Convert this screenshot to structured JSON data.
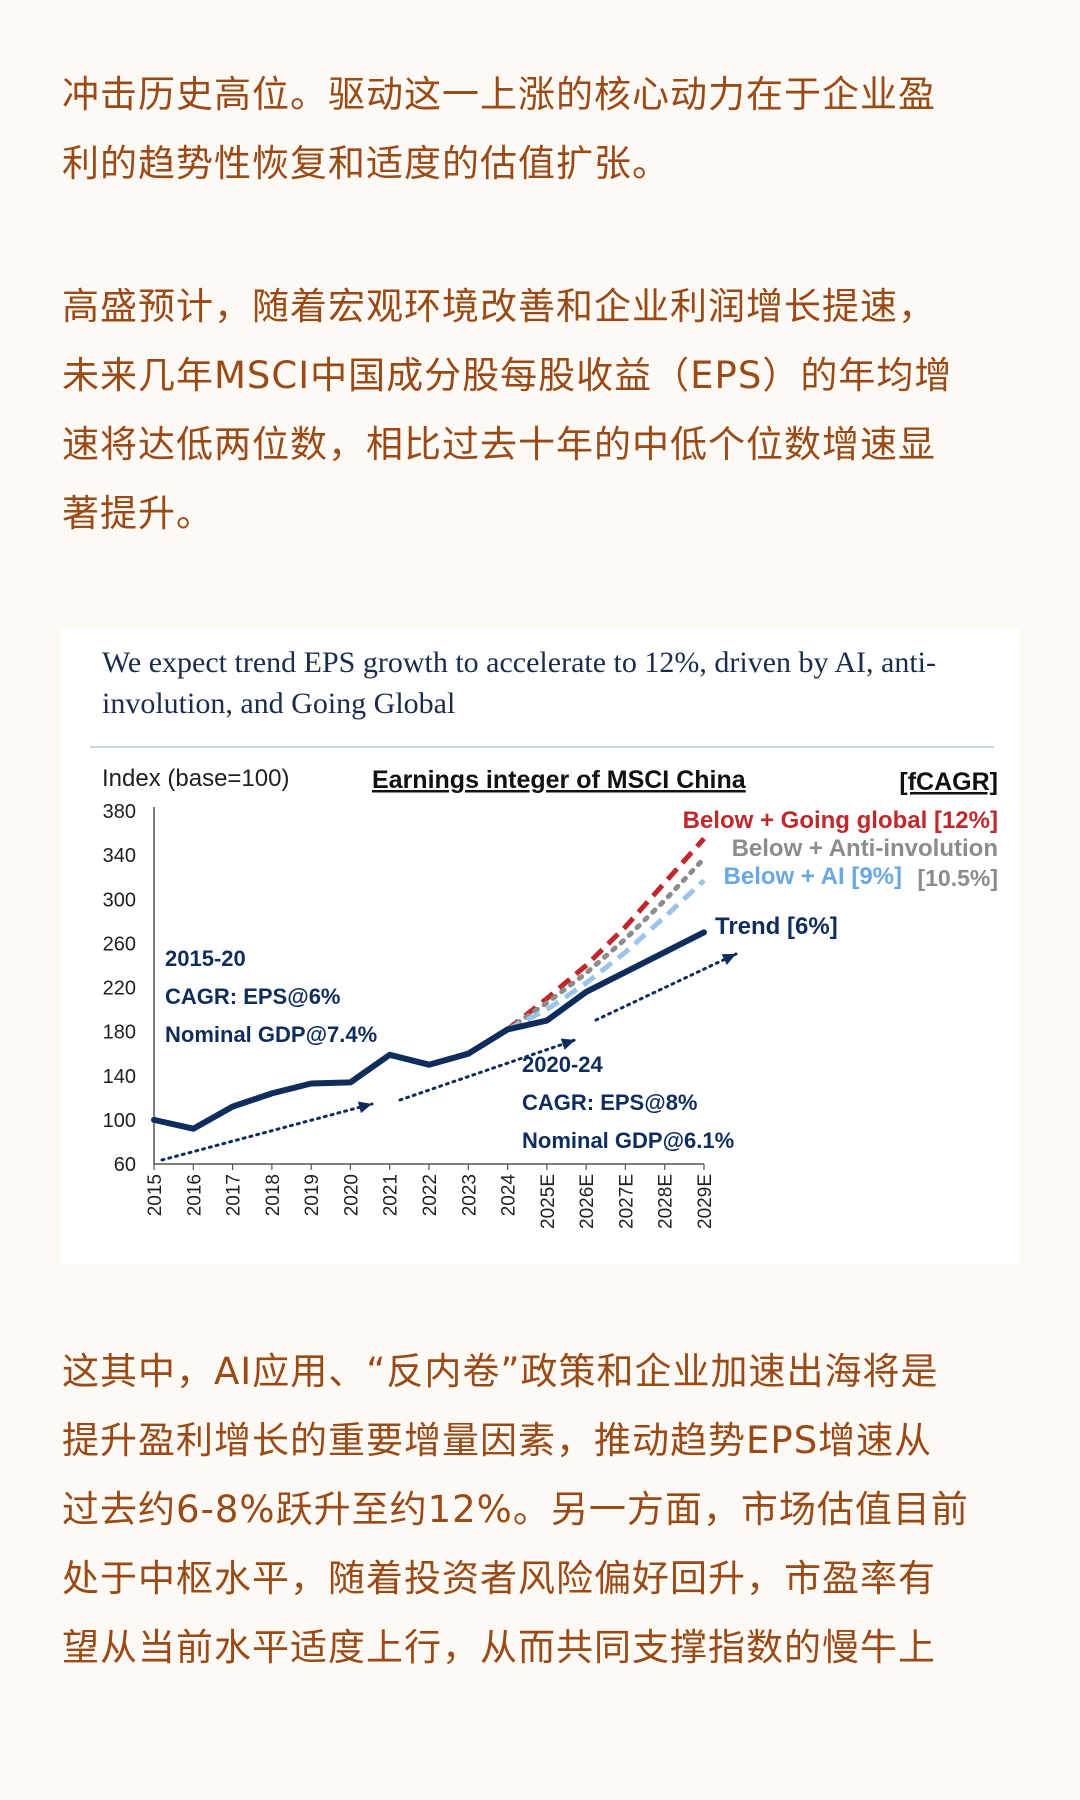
{
  "article": {
    "para1": [
      "冲击历史高位。驱动这一上涨的核心动力在于企业盈",
      "利的趋势性恢复和适度的估值扩张。"
    ],
    "para2": [
      "高盛预计，随着宏观环境改善和企业利润增长提速，",
      "未来几年MSCI中国成分股每股收益（EPS）的年均增",
      "速将达低两位数，相比过去十年的中低个位数增速显",
      "著提升。"
    ],
    "para3": [
      "这其中，AI应用、“反内卷”政策和企业加速出海将是",
      "提升盈利增长的重要增量因素，推动趋势EPS增速从",
      "过去约6-8%跃升至约12%。另一方面，市场估值目前",
      "处于中枢水平，随着投资者风险偏好回升，市盈率有",
      "望从当前水平适度上行，从而共同支撑指数的慢牛上"
    ]
  },
  "figure": {
    "headline": [
      "We expect trend EPS growth to accelerate to 12%, driven by AI, anti-",
      "involution, and Going Global"
    ]
  },
  "chart_data": {
    "type": "line",
    "title": "Earnings integer of MSCI China",
    "ylabel": "Index (base=100)",
    "corner_label": "[fCAGR]",
    "ylim": [
      60,
      380
    ],
    "yticks": [
      60,
      100,
      140,
      180,
      220,
      260,
      300,
      340,
      380
    ],
    "categories": [
      "2015",
      "2016",
      "2017",
      "2018",
      "2019",
      "2020",
      "2021",
      "2022",
      "2023",
      "2024",
      "2025E",
      "2026E",
      "2027E",
      "2028E",
      "2029E"
    ],
    "series": [
      {
        "name": "Trend [6%]",
        "color": "#0f2d5c",
        "style": "solid",
        "values": [
          100,
          92,
          112,
          124,
          133,
          134,
          159,
          150,
          160,
          182,
          190,
          216,
          234,
          252,
          270
        ]
      },
      {
        "name": "Below + Going global [12%]",
        "color": "#c0282c",
        "style": "dashed",
        "values": [
          null,
          null,
          null,
          null,
          null,
          null,
          null,
          null,
          null,
          182,
          210,
          240,
          275,
          315,
          355
        ]
      },
      {
        "name": "Below + Anti-involution [10.5%]",
        "color": "#8c8c8c",
        "style": "dotted",
        "values": [
          null,
          null,
          null,
          null,
          null,
          null,
          null,
          null,
          null,
          182,
          206,
          233,
          264,
          299,
          337
        ]
      },
      {
        "name": "Below + AI [9%]",
        "color": "#9cc3e8",
        "style": "dashed",
        "values": [
          null,
          null,
          null,
          null,
          null,
          null,
          null,
          null,
          null,
          182,
          200,
          224,
          252,
          284,
          317
        ]
      }
    ],
    "legend_text": {
      "going_global": "Below + Going global [12%]",
      "anti_involution": "Below + Anti-involution",
      "anti_involution_rate": "[10.5%]",
      "ai": "Below + AI [9%]",
      "trend": "Trend [6%]"
    },
    "annotations": {
      "period1": [
        "2015-20",
        "CAGR: EPS@6%",
        "Nominal GDP@7.4%"
      ],
      "period2": [
        "2020-24",
        "CAGR: EPS@8%",
        "Nominal GDP@6.1%"
      ]
    }
  }
}
